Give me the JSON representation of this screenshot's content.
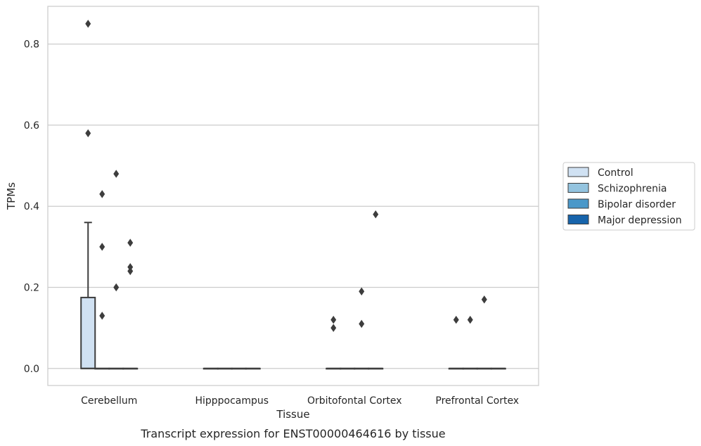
{
  "chart_data": {
    "type": "box",
    "caption": "Transcript expression for ENST00000464616 by tissue",
    "xlabel": "Tissue",
    "ylabel": "TPMs",
    "ylim": [
      -0.042,
      0.893
    ],
    "yticks": [
      0.0,
      0.2,
      0.4,
      0.6,
      0.8
    ],
    "ytick_labels": [
      "0.0",
      "0.2",
      "0.4",
      "0.6",
      "0.8"
    ],
    "grid": "horizontal",
    "legend_position": "right",
    "categories": [
      "Cerebellum",
      "Hipppocampus",
      "Orbitofontal Cortex",
      "Prefrontal Cortex"
    ],
    "series": [
      {
        "name": "Control",
        "color": "#d0e1f2",
        "boxes": [
          {
            "category": "Cerebellum",
            "q1": 0.0,
            "median": 0.0,
            "q3": 0.175,
            "whisker_low": 0.0,
            "whisker_high": 0.36,
            "outliers": [
              0.85,
              0.58
            ]
          },
          {
            "category": "Hipppocampus",
            "q1": 0.0,
            "median": 0.0,
            "q3": 0.0,
            "whisker_low": 0.0,
            "whisker_high": 0.0,
            "outliers": []
          },
          {
            "category": "Orbitofontal Cortex",
            "q1": 0.0,
            "median": 0.0,
            "q3": 0.0,
            "whisker_low": 0.0,
            "whisker_high": 0.0,
            "outliers": [
              0.12,
              0.1
            ]
          },
          {
            "category": "Prefrontal Cortex",
            "q1": 0.0,
            "median": 0.0,
            "q3": 0.0,
            "whisker_low": 0.0,
            "whisker_high": 0.0,
            "outliers": [
              0.12
            ]
          }
        ]
      },
      {
        "name": "Schizophrenia",
        "color": "#94c4df",
        "boxes": [
          {
            "category": "Cerebellum",
            "q1": 0.0,
            "median": 0.0,
            "q3": 0.0,
            "whisker_low": 0.0,
            "whisker_high": 0.0,
            "outliers": [
              0.43,
              0.3,
              0.13
            ]
          },
          {
            "category": "Hipppocampus",
            "q1": 0.0,
            "median": 0.0,
            "q3": 0.0,
            "whisker_low": 0.0,
            "whisker_high": 0.0,
            "outliers": []
          },
          {
            "category": "Orbitofontal Cortex",
            "q1": 0.0,
            "median": 0.0,
            "q3": 0.0,
            "whisker_low": 0.0,
            "whisker_high": 0.0,
            "outliers": []
          },
          {
            "category": "Prefrontal Cortex",
            "q1": 0.0,
            "median": 0.0,
            "q3": 0.0,
            "whisker_low": 0.0,
            "whisker_high": 0.0,
            "outliers": [
              0.12
            ]
          }
        ]
      },
      {
        "name": "Bipolar disorder",
        "color": "#4a98c9",
        "boxes": [
          {
            "category": "Cerebellum",
            "q1": 0.0,
            "median": 0.0,
            "q3": 0.0,
            "whisker_low": 0.0,
            "whisker_high": 0.0,
            "outliers": [
              0.48,
              0.2
            ]
          },
          {
            "category": "Hipppocampus",
            "q1": 0.0,
            "median": 0.0,
            "q3": 0.0,
            "whisker_low": 0.0,
            "whisker_high": 0.0,
            "outliers": []
          },
          {
            "category": "Orbitofontal Cortex",
            "q1": 0.0,
            "median": 0.0,
            "q3": 0.0,
            "whisker_low": 0.0,
            "whisker_high": 0.0,
            "outliers": [
              0.19,
              0.11
            ]
          },
          {
            "category": "Prefrontal Cortex",
            "q1": 0.0,
            "median": 0.0,
            "q3": 0.0,
            "whisker_low": 0.0,
            "whisker_high": 0.0,
            "outliers": [
              0.17
            ]
          }
        ]
      },
      {
        "name": "Major depression",
        "color": "#1764ab",
        "boxes": [
          {
            "category": "Cerebellum",
            "q1": 0.0,
            "median": 0.0,
            "q3": 0.0,
            "whisker_low": 0.0,
            "whisker_high": 0.0,
            "outliers": [
              0.31,
              0.25,
              0.24
            ]
          },
          {
            "category": "Hipppocampus",
            "q1": 0.0,
            "median": 0.0,
            "q3": 0.0,
            "whisker_low": 0.0,
            "whisker_high": 0.0,
            "outliers": []
          },
          {
            "category": "Orbitofontal Cortex",
            "q1": 0.0,
            "median": 0.0,
            "q3": 0.0,
            "whisker_low": 0.0,
            "whisker_high": 0.0,
            "outliers": [
              0.38
            ]
          },
          {
            "category": "Prefrontal Cortex",
            "q1": 0.0,
            "median": 0.0,
            "q3": 0.0,
            "whisker_low": 0.0,
            "whisker_high": 0.0,
            "outliers": []
          }
        ]
      }
    ]
  }
}
